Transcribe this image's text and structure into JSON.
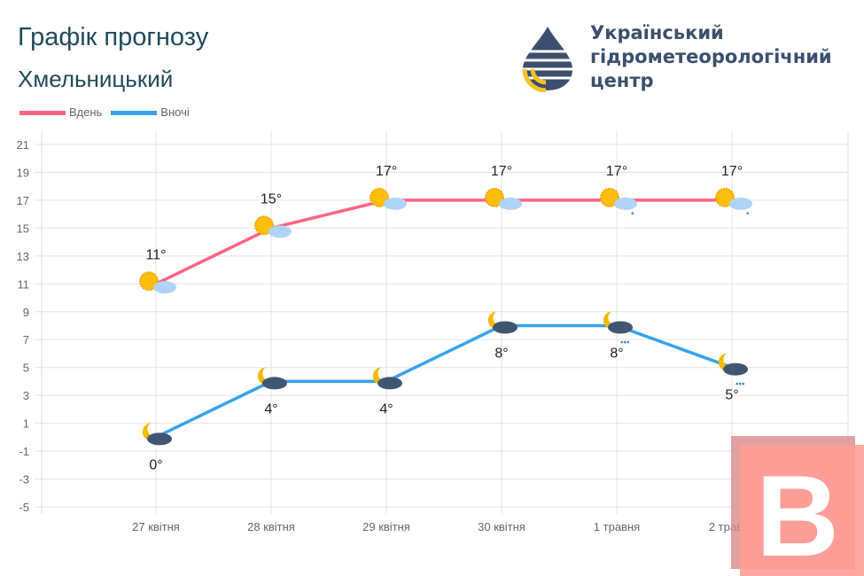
{
  "header": {
    "title": "Графік прогнозу",
    "city": "Хмельницький"
  },
  "org": {
    "line1": "Український",
    "line2": "гідрометеорологічний",
    "line3": "центр"
  },
  "colors": {
    "day": "#ff6384",
    "night": "#36a2eb",
    "title": "#1f4b5c"
  },
  "chart_data": {
    "type": "line",
    "categories": [
      "27 квітня",
      "28 квітня",
      "29 квітня",
      "30 квітня",
      "1 травня",
      "2 травня"
    ],
    "series": [
      {
        "name": "Вдень",
        "values": [
          11,
          15,
          17,
          17,
          17,
          17
        ],
        "labels": [
          "11°",
          "15°",
          "17°",
          "17°",
          "17°",
          "17°"
        ],
        "icons": [
          "sun-cloud-icon",
          "sun-cloud-icon",
          "sun-cloud-icon",
          "sun-cloud-icon",
          "sun-cloud-rain-icon",
          "sun-cloud-rain-icon"
        ]
      },
      {
        "name": "Вночі",
        "values": [
          0,
          4,
          4,
          8,
          8,
          5
        ],
        "labels": [
          "0°",
          "4°",
          "4°",
          "8°",
          "8°",
          "5°"
        ],
        "icons": [
          "moon-cloud-icon",
          "moon-cloud-icon",
          "moon-cloud-icon",
          "moon-cloud-icon",
          "moon-cloud-rain-icon",
          "moon-cloud-rain-icon"
        ]
      }
    ],
    "yticks": [
      21,
      19,
      17,
      15,
      13,
      11,
      9,
      7,
      5,
      3,
      1,
      -1,
      -3,
      -5
    ],
    "ylim": [
      -5,
      21
    ],
    "grid": true,
    "legend": "top-left"
  }
}
